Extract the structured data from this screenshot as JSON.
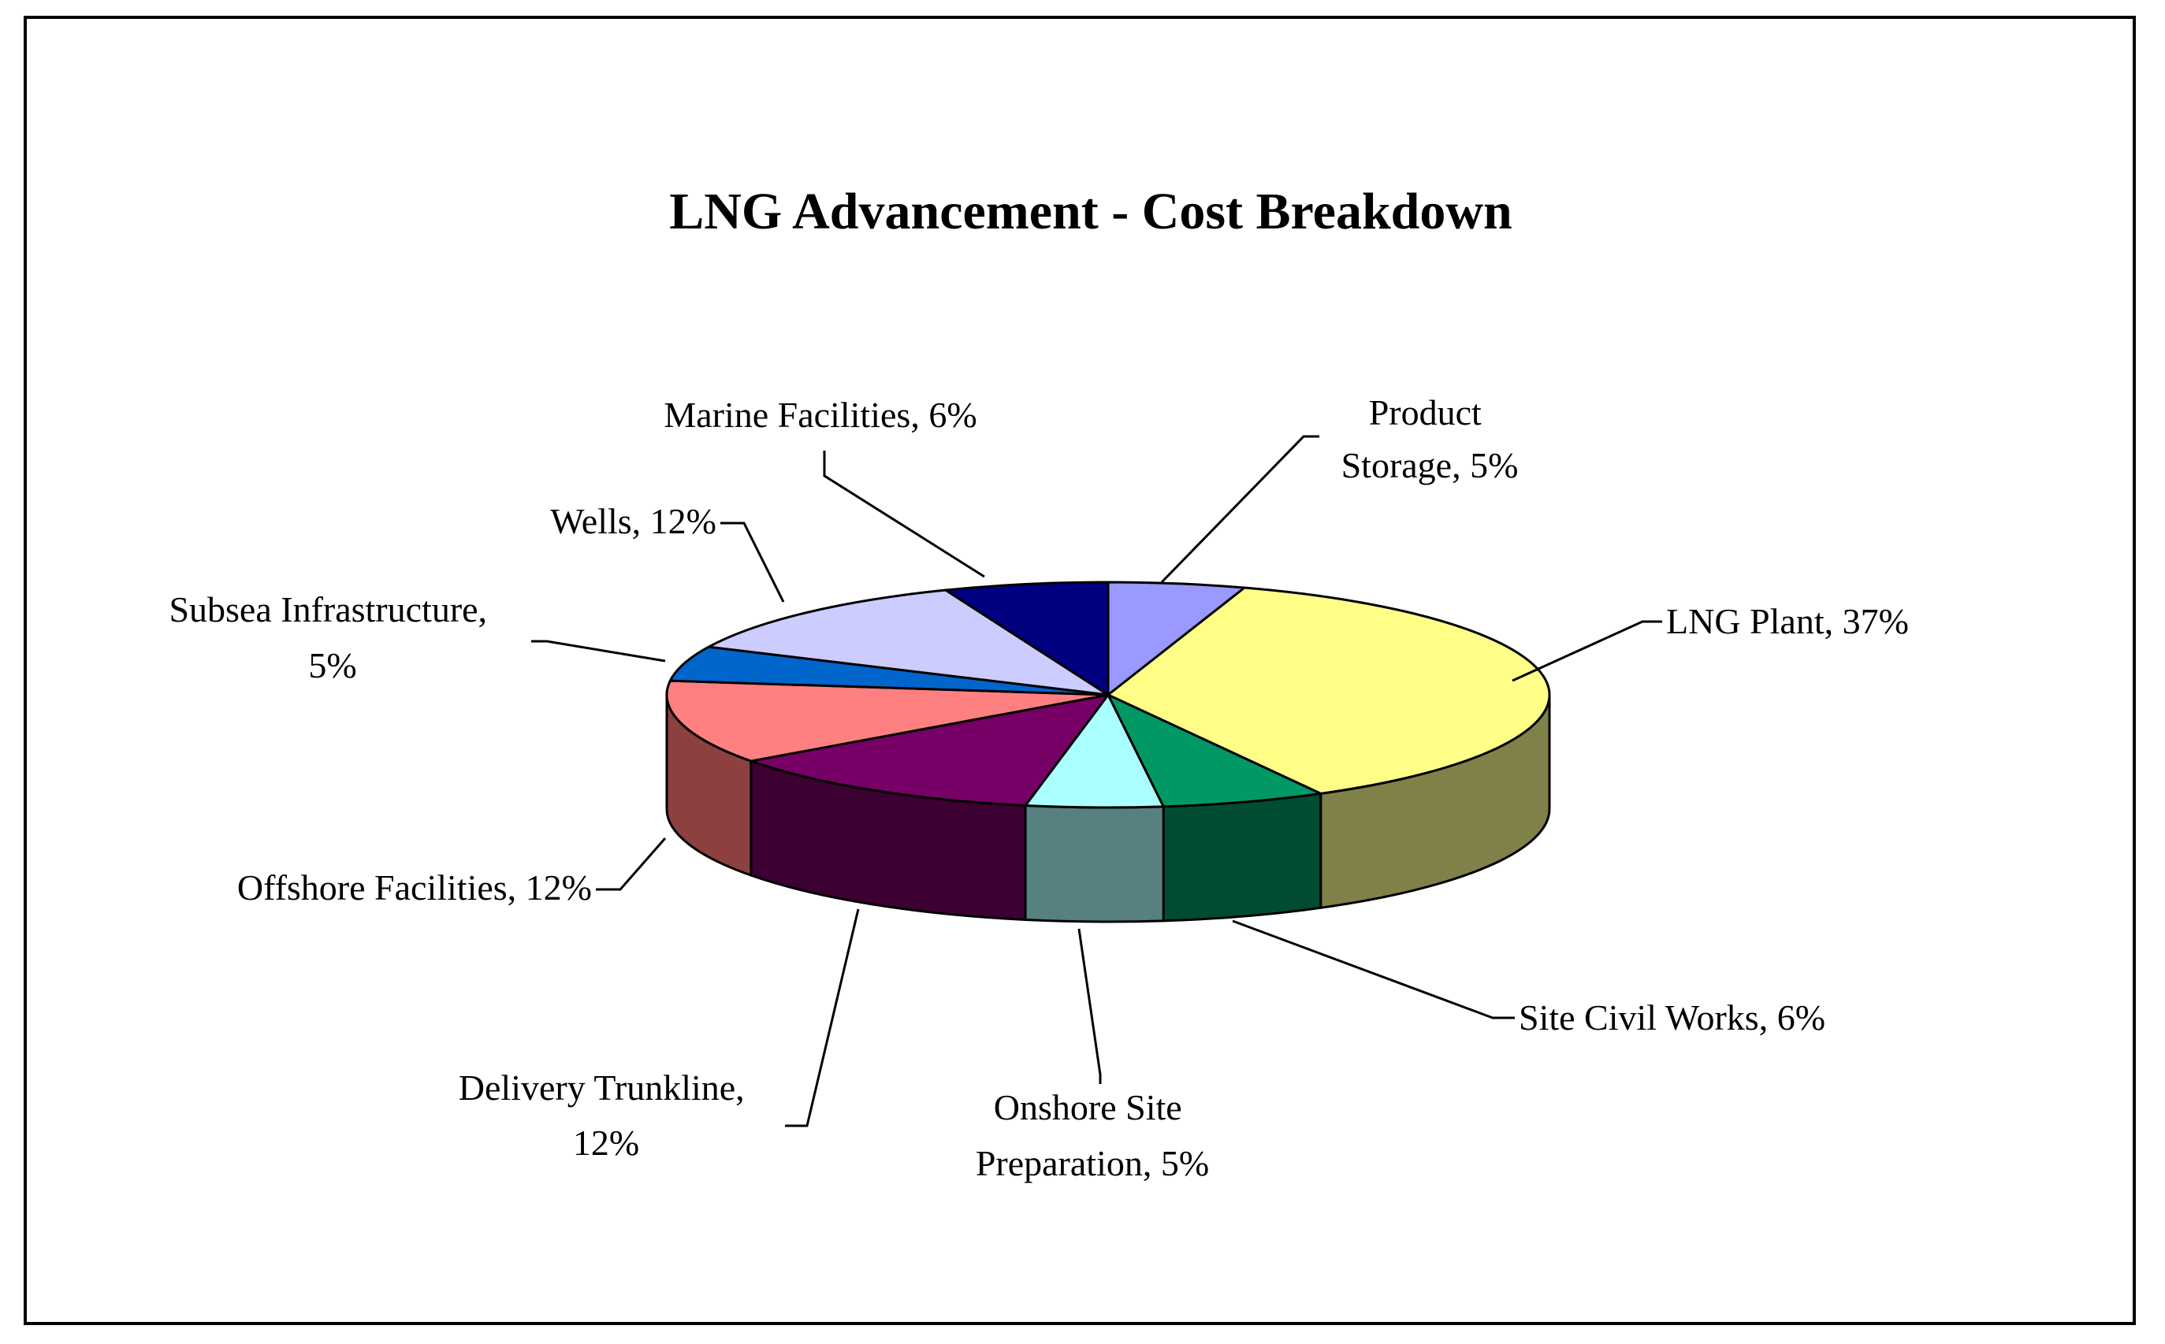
{
  "chart_data": {
    "type": "pie",
    "style": "3d",
    "title": "LNG Advancement - Cost Breakdown",
    "legend": "none",
    "series": [
      {
        "slices": [
          {
            "name": "Product Storage",
            "value": 5,
            "label": "Product Storage, 5%",
            "color": "#9999FF",
            "side_color": "#6666B3"
          },
          {
            "name": "LNG Plant",
            "value": 37,
            "label": "LNG Plant, 37%",
            "color": "#FFFF88",
            "side_color": "#808049"
          },
          {
            "name": "Site Civil Works",
            "value": 6,
            "label": "Site Civil Works, 6%",
            "color": "#009966",
            "side_color": "#004C33"
          },
          {
            "name": "Onshore Site Preparation",
            "value": 5,
            "label": "Onshore Site Preparation, 5%",
            "color": "#AAFFFF",
            "side_color": "#578080"
          },
          {
            "name": "Delivery Trunkline",
            "value": 12,
            "label": "Delivery Trunkline, 12%",
            "color": "#770066",
            "side_color": "#3C0033"
          },
          {
            "name": "Offshore Facilities",
            "value": 12,
            "label": "Offshore Facilities, 12%",
            "color": "#FF8080",
            "side_color": "#8C4040"
          },
          {
            "name": "Subsea Infrastructure",
            "value": 5,
            "label": "Subsea Infrastructure, 5%",
            "color": "#0066CC",
            "side_color": "#003366"
          },
          {
            "name": "Wells",
            "value": 12,
            "label": "Wells, 12%",
            "color": "#CCCCFF",
            "side_color": "#666680"
          },
          {
            "name": "Marine Facilities",
            "value": 6,
            "label": "Marine Facilities, 6%",
            "color": "#000080",
            "side_color": "#000040"
          }
        ]
      }
    ]
  },
  "labels": {
    "product_storage": [
      "Product",
      "Storage, 5%"
    ],
    "lng_plant": [
      "LNG Plant, 37%"
    ],
    "site_civil_works": [
      "Site Civil Works, 6%"
    ],
    "onshore_site_preparation": [
      "Onshore Site",
      "Preparation, 5%"
    ],
    "delivery_trunkline": [
      "Delivery Trunkline,",
      "12%"
    ],
    "offshore_facilities": [
      "Offshore Facilities, 12%"
    ],
    "subsea_infrastructure": [
      "Subsea Infrastructure,",
      "5%"
    ],
    "wells": [
      "Wells, 12%"
    ],
    "marine_facilities": [
      "Marine Facilities, 6%"
    ]
  }
}
